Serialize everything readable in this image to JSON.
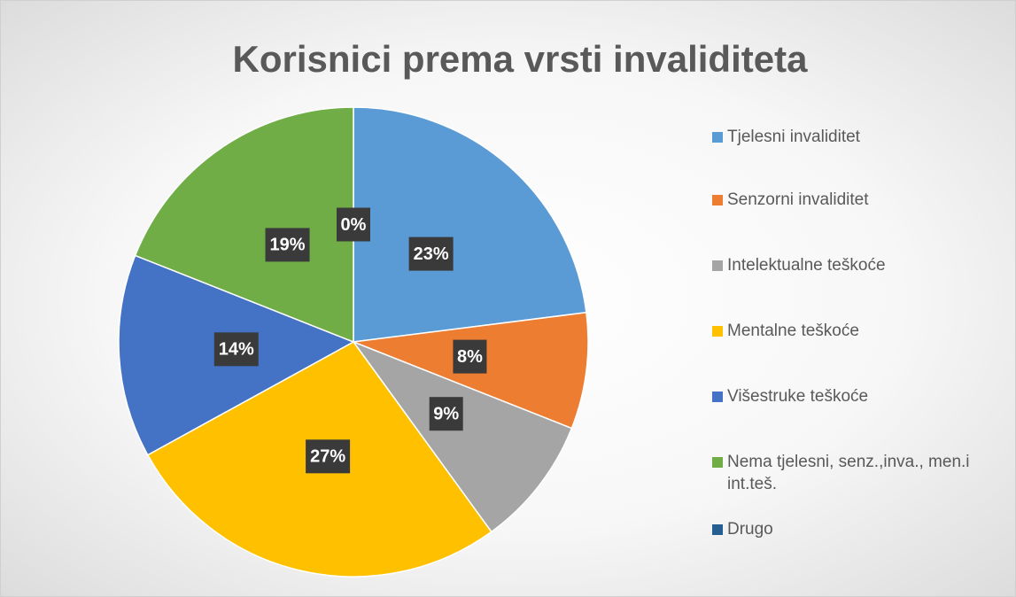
{
  "chart_data": {
    "type": "pie",
    "title": "Korisnici prema vrsti invaliditeta",
    "categories": [
      "Tjelesni invaliditet",
      "Senzorni invaliditet",
      "Intelektualne teškoće",
      "Mentalne teškoće",
      "Višestruke teškoće",
      "Nema tjelesni, senz.,inva., men.i int.teš.",
      "Drugo"
    ],
    "values": [
      23,
      8,
      9,
      27,
      14,
      19,
      0
    ],
    "value_labels": [
      "23%",
      "8%",
      "9%",
      "27%",
      "14%",
      "19%",
      "0%"
    ],
    "colors": [
      "#5b9bd5",
      "#ed7d31",
      "#a5a5a5",
      "#ffc000",
      "#4472c4",
      "#70ad47",
      "#255e91"
    ],
    "legend": "right"
  }
}
